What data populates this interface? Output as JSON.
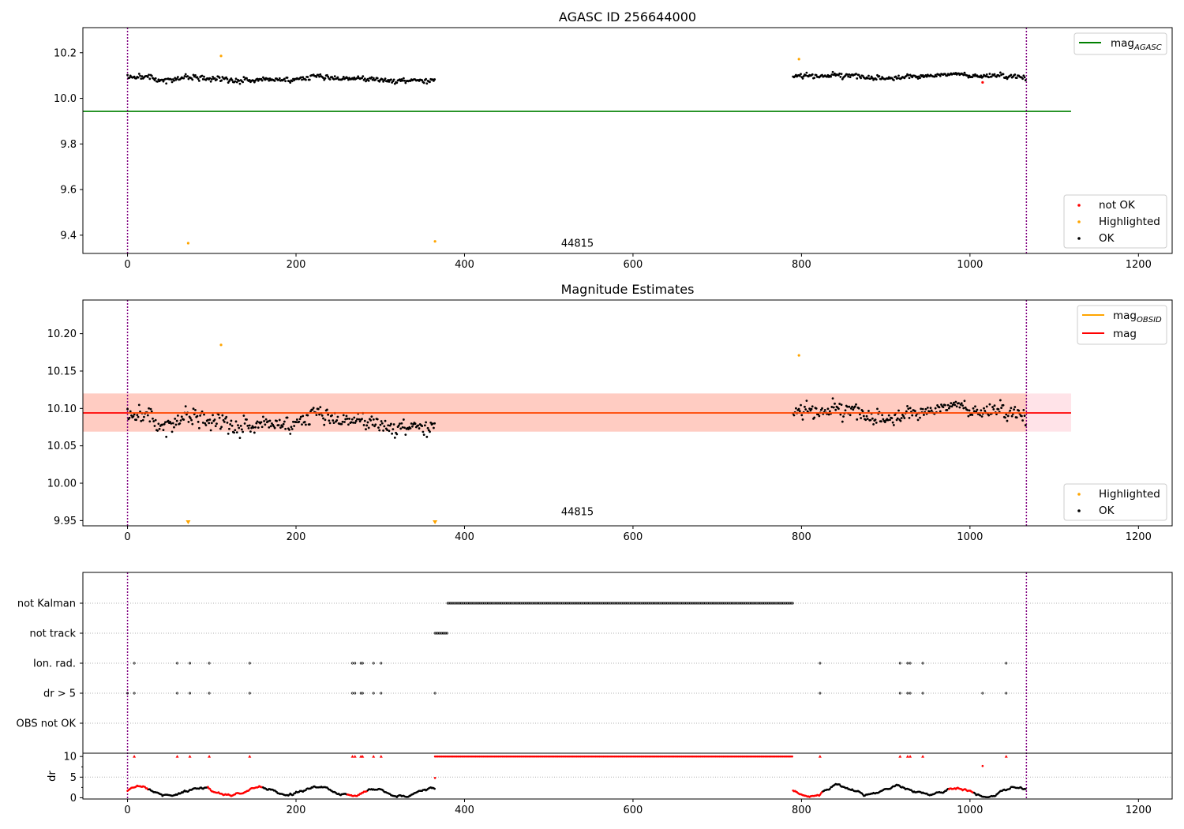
{
  "chart_data": [
    {
      "type": "scatter",
      "title": "AGASC ID 256644000",
      "xlim": [
        -53,
        1240
      ],
      "ylim": [
        9.32,
        10.31
      ],
      "xticks": [
        0,
        200,
        400,
        600,
        800,
        1000,
        1200
      ],
      "yticks": [
        9.4,
        9.6,
        9.8,
        10.0,
        10.2
      ],
      "ytick_labels": [
        "9.4",
        "9.6",
        "9.8",
        "10.0",
        "10.2"
      ],
      "vlines": [
        0,
        1067
      ],
      "vline_color": "#800080",
      "hline": {
        "y": 9.943,
        "x_from": -53,
        "x_to": 1120,
        "color": "#008000"
      },
      "annotation": {
        "text": "44815",
        "x": 534,
        "y": 9.35
      },
      "segments": [
        {
          "x_start": 0,
          "x_end": 365,
          "y_base": 10.095,
          "y_noise": 0.025,
          "slope": -4e-05
        },
        {
          "x_start": 790,
          "x_end": 1067,
          "y_base": 10.1,
          "y_noise": 0.022,
          "slope": 0
        }
      ],
      "highlighted": [
        {
          "x": 72,
          "y": 9.365
        },
        {
          "x": 111,
          "y": 10.186
        },
        {
          "x": 365,
          "y": 9.373
        },
        {
          "x": 797,
          "y": 10.172
        }
      ],
      "not_ok": [
        {
          "x": 1015,
          "y": 10.07
        }
      ],
      "legend_upper": [
        {
          "label": "mag",
          "subscript": "AGASC",
          "color": "#008000"
        }
      ],
      "legend_lower": [
        {
          "label": "not OK",
          "color": "#ff0000"
        },
        {
          "label": "Highlighted",
          "color": "#ffa500"
        },
        {
          "label": "OK",
          "color": "#000000"
        }
      ]
    },
    {
      "type": "scatter",
      "title": "Magnitude Estimates",
      "xlim": [
        -53,
        1240
      ],
      "ylim": [
        9.943,
        10.245
      ],
      "xticks": [
        0,
        200,
        400,
        600,
        800,
        1000,
        1200
      ],
      "yticks": [
        9.95,
        10.0,
        10.05,
        10.1,
        10.15,
        10.2
      ],
      "ytick_labels": [
        "9.95",
        "10.00",
        "10.05",
        "10.10",
        "10.15",
        "10.20"
      ],
      "vlines": [
        0,
        1067
      ],
      "vline_color": "#800080",
      "mag_line": {
        "y": 10.094,
        "x_from": -53,
        "x_to": 1120,
        "color": "#ff0000"
      },
      "band": {
        "y_low": 10.069,
        "y_high": 10.12,
        "x_from": -53,
        "x_to": 1120
      },
      "annotation": {
        "text": "44815",
        "x": 534,
        "y": 9.955
      },
      "segments": [
        {
          "x_start": 0,
          "x_end": 365,
          "y_base": 10.092,
          "y_noise": 0.025,
          "slope": -4e-05
        },
        {
          "x_start": 790,
          "x_end": 1067,
          "y_base": 10.098,
          "y_noise": 0.022,
          "slope": 0
        }
      ],
      "highlighted": [
        {
          "x": 111,
          "y": 10.185
        },
        {
          "x": 797,
          "y": 10.171
        }
      ],
      "highlighted_clipped_x": [
        72,
        365
      ],
      "legend_upper": [
        {
          "label": "mag",
          "subscript": "OBSID",
          "color": "#ffa500"
        },
        {
          "label": "mag",
          "subscript": "",
          "color": "#ff0000"
        }
      ],
      "legend_lower": [
        {
          "label": "Highlighted",
          "color": "#ffa500"
        },
        {
          "label": "OK",
          "color": "#000000"
        }
      ]
    },
    {
      "type": "scatter",
      "title": "",
      "xlim": [
        -53,
        1240
      ],
      "xticks": [
        0,
        200,
        400,
        600,
        800,
        1000,
        1200
      ],
      "vlines": [
        0,
        1067
      ],
      "vline_color": "#800080",
      "flag_rows": [
        "not Kalman",
        "not track",
        "Ion. rad.",
        "dr > 5",
        "OBS not OK"
      ],
      "not_kalman_range": [
        380,
        790
      ],
      "not_track_range": [
        365,
        380
      ],
      "ion_rad_x": [
        8,
        59,
        74,
        97,
        145,
        267,
        270,
        277,
        279,
        292,
        301,
        822,
        917,
        926,
        929,
        944,
        1043
      ],
      "dr5_x": [
        0,
        8,
        59,
        74,
        97,
        145,
        267,
        270,
        277,
        279,
        292,
        301,
        365,
        822,
        917,
        926,
        929,
        944,
        1015,
        1043
      ],
      "dr_ylim": [
        -0.3,
        10.8
      ],
      "dr_yticks": [
        0,
        5,
        10
      ],
      "dr_ylabel": "dr",
      "dr_high_x": [
        8,
        59,
        74,
        97,
        145,
        267,
        270,
        277,
        279,
        292,
        301,
        822,
        917,
        926,
        929,
        944,
        1043
      ],
      "dr_high_range": [
        365,
        790
      ],
      "dr_red_ranges": [
        [
          0,
          25
        ],
        [
          95,
          160
        ],
        [
          260,
          285
        ],
        [
          790,
          825
        ],
        [
          975,
          1005
        ]
      ],
      "dr_single_points": [
        {
          "x": 1015,
          "y": 7.7,
          "red": true
        },
        {
          "x": 365,
          "y": 4.8,
          "red": true
        }
      ]
    }
  ]
}
